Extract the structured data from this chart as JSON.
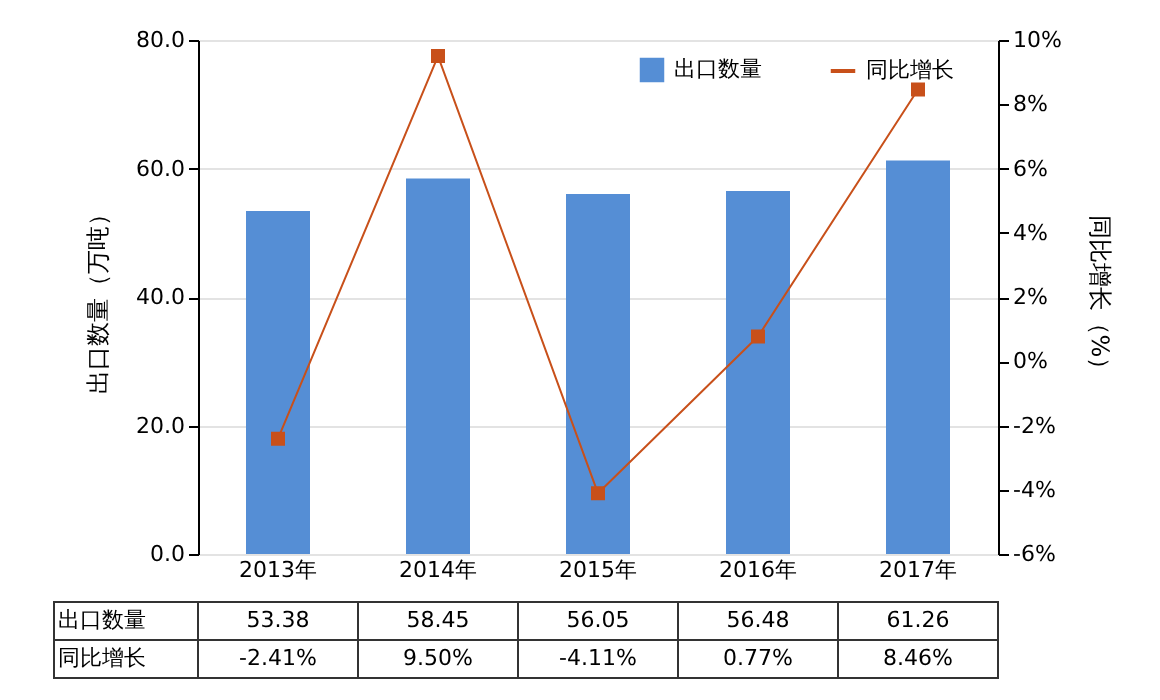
{
  "chart_data": {
    "type": "bar",
    "categories": [
      "2013年",
      "2014年",
      "2015年",
      "2016年",
      "2017年"
    ],
    "series": [
      {
        "name": "出口数量",
        "color": "#558ed5",
        "values": [
          53.38,
          58.45,
          56.05,
          56.48,
          61.26
        ],
        "value_labels": [
          "53.38",
          "58.45",
          "56.05",
          "56.48",
          "61.26"
        ]
      },
      {
        "name": "同比增长",
        "type": "line",
        "axis": "y2",
        "color": "#c8501a",
        "values": [
          -2.41,
          9.5,
          -4.11,
          0.77,
          8.46
        ],
        "value_labels": [
          "-2.41%",
          "9.50%",
          "-4.11%",
          "0.77%",
          "8.46%"
        ]
      }
    ],
    "ylabel": "出口数量（万吨）",
    "y2label": "同比增长（%）",
    "ylim": [
      0,
      80
    ],
    "yticks": [
      {
        "value": 0,
        "label": "0.0"
      },
      {
        "value": 20,
        "label": "20.0"
      },
      {
        "value": 40,
        "label": "40.0"
      },
      {
        "value": 60,
        "label": "60.0"
      },
      {
        "value": 80,
        "label": "80.0"
      }
    ],
    "y2lim": [
      -6,
      10
    ],
    "y2ticks": [
      {
        "value": -6,
        "label": "-6%"
      },
      {
        "value": -4,
        "label": "-4%"
      },
      {
        "value": -2,
        "label": "-2%"
      },
      {
        "value": 0,
        "label": "0%"
      },
      {
        "value": 2,
        "label": "2%"
      },
      {
        "value": 4,
        "label": "4%"
      },
      {
        "value": 6,
        "label": "6%"
      },
      {
        "value": 8,
        "label": "8%"
      },
      {
        "value": 10,
        "label": "10%"
      }
    ],
    "grid": "y",
    "legend": "top right",
    "marker": "square",
    "line_style": "solid"
  }
}
